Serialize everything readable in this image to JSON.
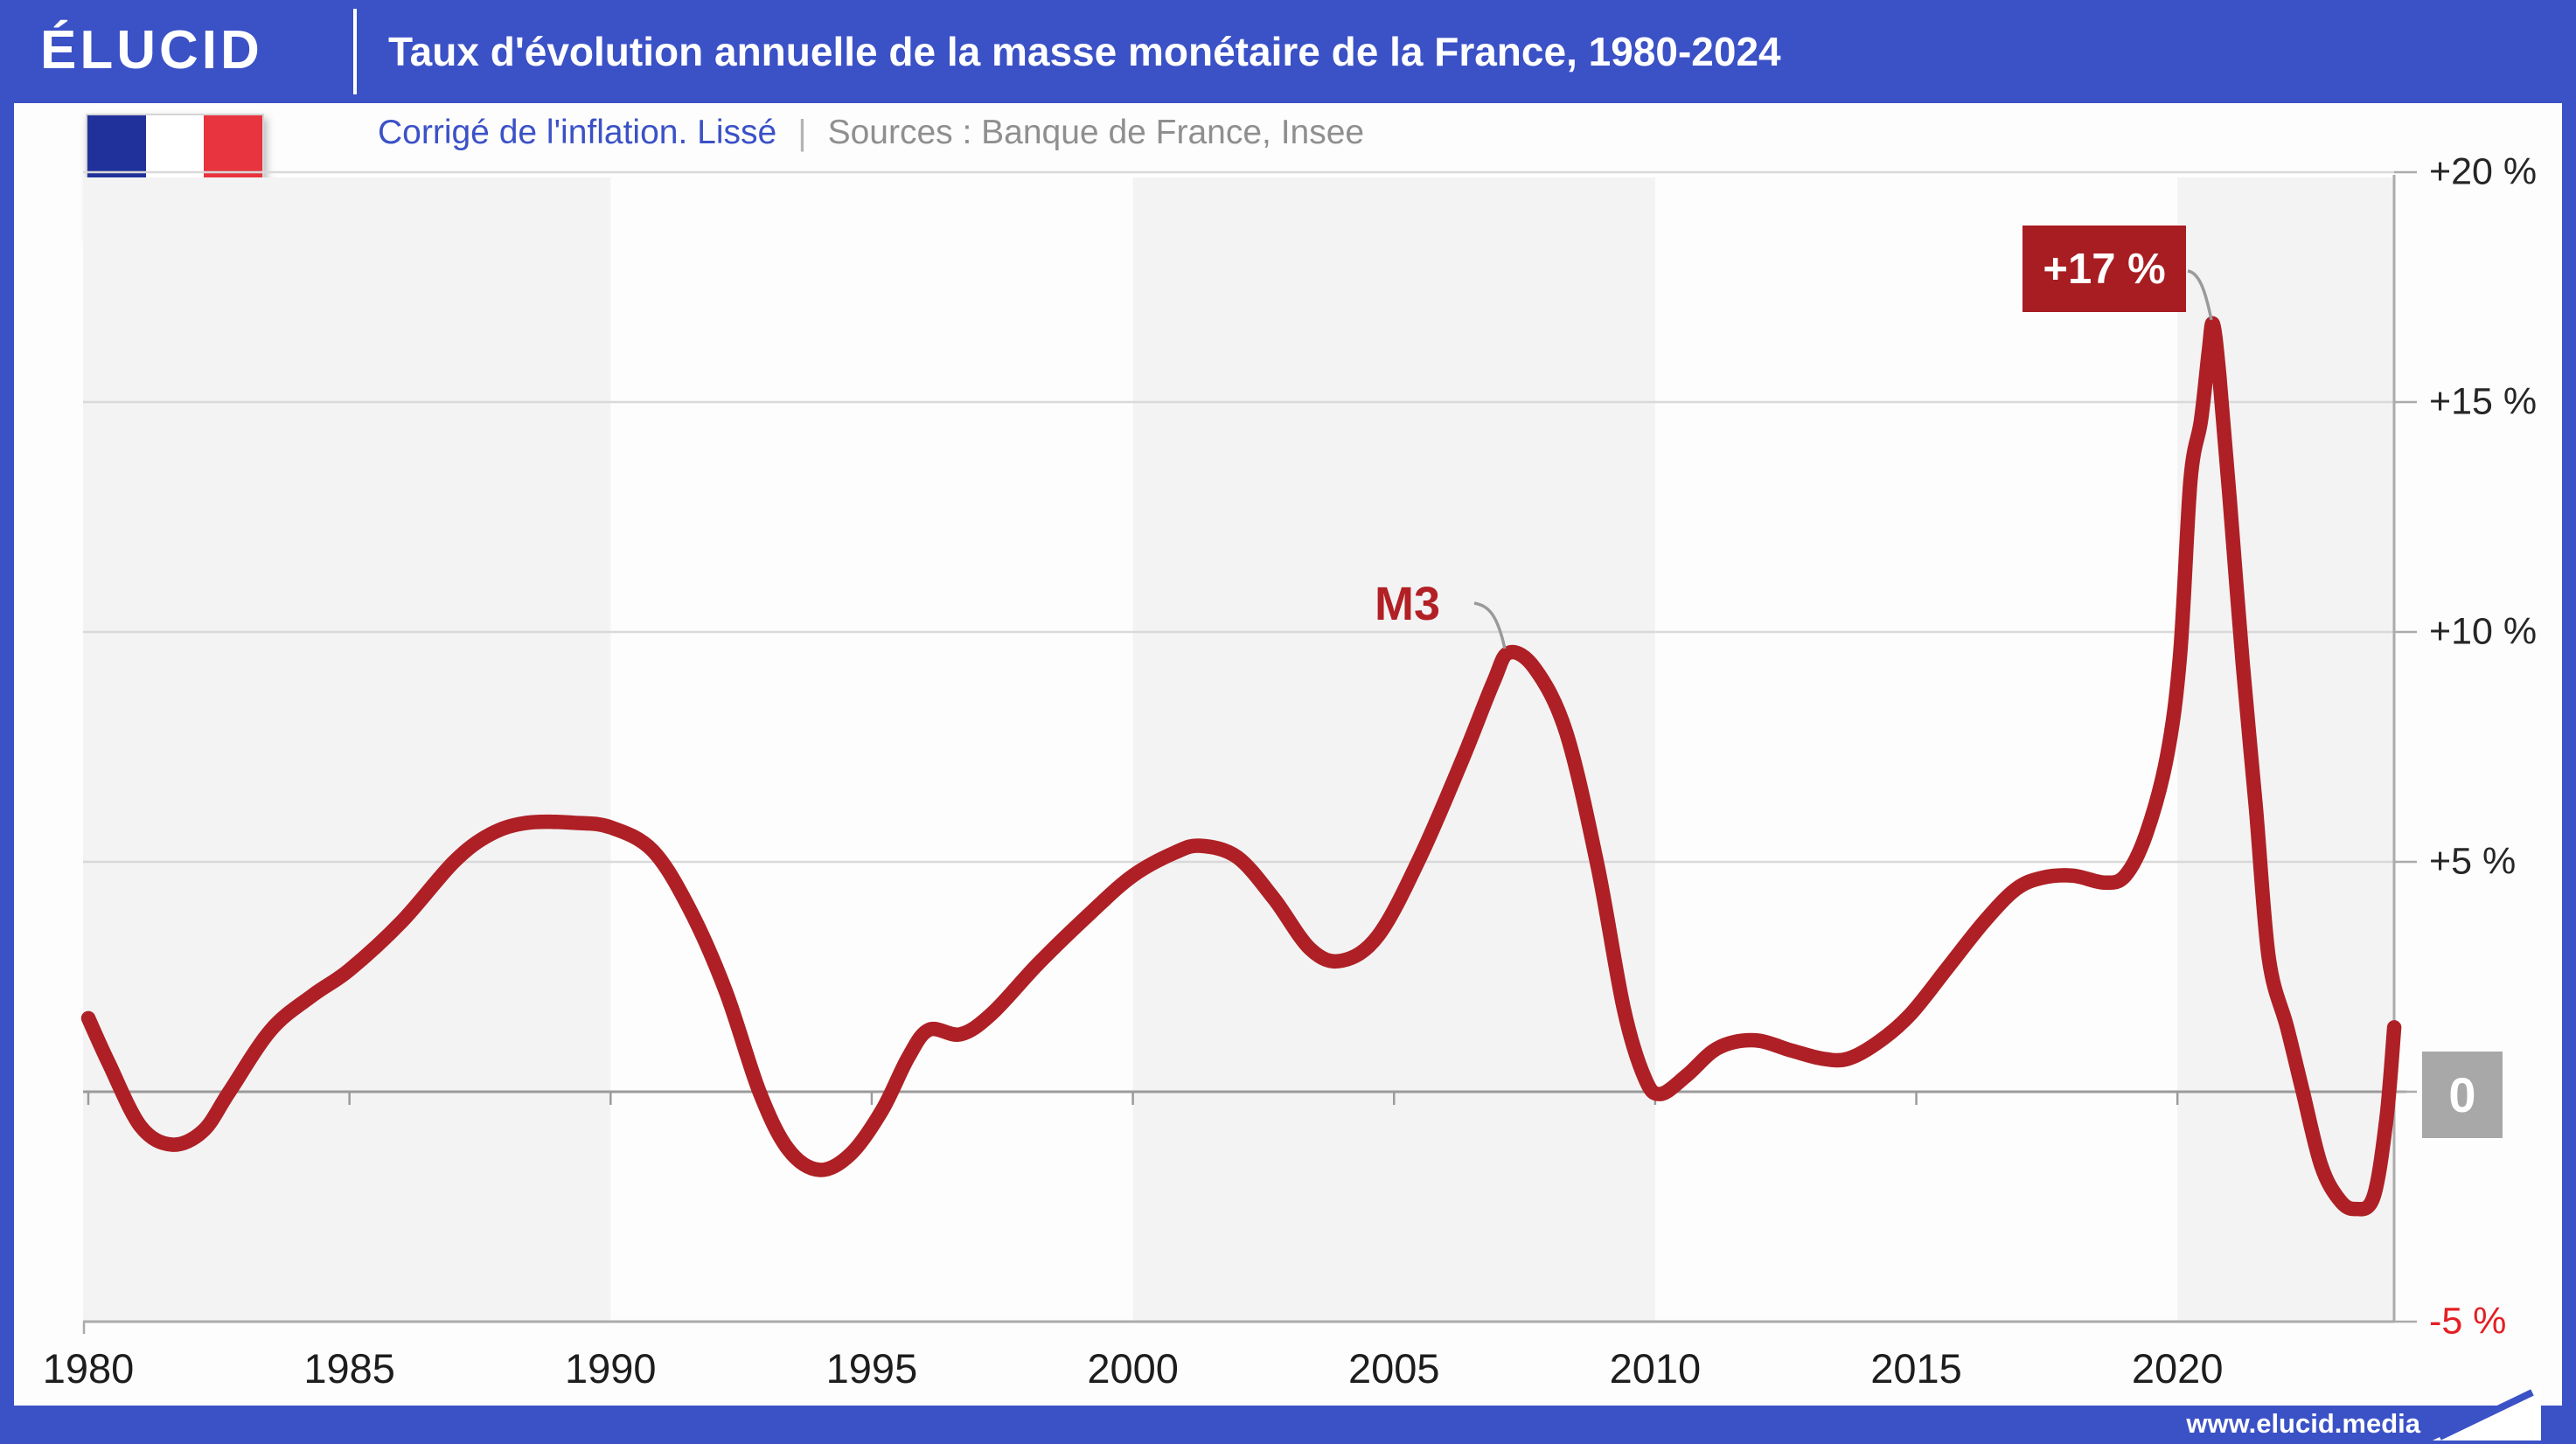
{
  "header": {
    "logo": "ÉLUCID",
    "title": "Taux d'évolution annuelle de la masse monétaire de la France, 1980-2024"
  },
  "subtitle": {
    "note": "Corrigé de l'inflation. Lissé",
    "separator": "|",
    "sources": "Sources : Banque de France, Insee"
  },
  "annotations": {
    "m3_label": "M3",
    "peak_label": "+17 %"
  },
  "axis": {
    "zero_label": "0",
    "neg_label": "-5 %"
  },
  "footer": {
    "url": "www.elucid.media"
  },
  "colors": {
    "accent_blue": "#3b51c6",
    "curve_red": "#ae2025",
    "callout_red": "#a81d22",
    "negative_red": "#e41f24",
    "gridline": "#d9d9d9",
    "zero_line": "#9b9b9b",
    "axis_line": "#ababab",
    "band_gray": "#f3f3f4",
    "zero_box_gray": "#a8a8a8",
    "flag_blue": "#21319b",
    "flag_red": "#e8343f"
  },
  "chart_data": {
    "type": "line",
    "title": "Taux d'évolution annuelle de la masse monétaire de la France, 1980-2024",
    "subtitle": "Corrigé de l'inflation. Lissé",
    "sources": "Banque de France, Insee",
    "unit": "%",
    "xlim": [
      1979.9,
      2024.3
    ],
    "ylim": [
      -5,
      20
    ],
    "grid": true,
    "x_ticks": [
      1980,
      1985,
      1990,
      1995,
      2000,
      2005,
      2010,
      2015,
      2020
    ],
    "y_ticks": [
      {
        "v": 20,
        "label": "+20 %"
      },
      {
        "v": 15,
        "label": "+15 %"
      },
      {
        "v": 10,
        "label": "+10 %"
      },
      {
        "v": 5,
        "label": "+5 %"
      },
      {
        "v": 0,
        "label": "0"
      },
      {
        "v": -5,
        "label": "-5 %"
      }
    ],
    "background_bands": [
      [
        1979.9,
        1990
      ],
      [
        2000,
        2010
      ],
      [
        2020,
        2024.3
      ]
    ],
    "series": [
      {
        "name": "M3",
        "points": [
          [
            1980.0,
            1.6
          ],
          [
            1980.4,
            0.6
          ],
          [
            1981.0,
            -0.75
          ],
          [
            1981.6,
            -1.15
          ],
          [
            1982.2,
            -0.85
          ],
          [
            1982.7,
            0.0
          ],
          [
            1983.5,
            1.35
          ],
          [
            1984.3,
            2.1
          ],
          [
            1985.0,
            2.65
          ],
          [
            1986.0,
            3.7
          ],
          [
            1987.0,
            5.0
          ],
          [
            1987.7,
            5.6
          ],
          [
            1988.4,
            5.85
          ],
          [
            1989.3,
            5.85
          ],
          [
            1990.0,
            5.75
          ],
          [
            1990.8,
            5.25
          ],
          [
            1991.5,
            4.0
          ],
          [
            1992.2,
            2.2
          ],
          [
            1992.85,
            0.0
          ],
          [
            1993.4,
            -1.25
          ],
          [
            1994.0,
            -1.7
          ],
          [
            1994.6,
            -1.35
          ],
          [
            1995.2,
            -0.4
          ],
          [
            1995.7,
            0.75
          ],
          [
            1996.1,
            1.35
          ],
          [
            1996.7,
            1.25
          ],
          [
            1997.3,
            1.7
          ],
          [
            1998.2,
            2.8
          ],
          [
            1999.2,
            3.9
          ],
          [
            2000.0,
            4.7
          ],
          [
            2000.8,
            5.2
          ],
          [
            2001.3,
            5.35
          ],
          [
            2002.0,
            5.1
          ],
          [
            2002.7,
            4.2
          ],
          [
            2003.4,
            3.1
          ],
          [
            2004.0,
            2.85
          ],
          [
            2004.7,
            3.4
          ],
          [
            2005.5,
            5.1
          ],
          [
            2006.3,
            7.2
          ],
          [
            2006.9,
            8.9
          ],
          [
            2007.2,
            9.55
          ],
          [
            2007.7,
            9.2
          ],
          [
            2008.3,
            7.8
          ],
          [
            2008.9,
            4.9
          ],
          [
            2009.4,
            1.8
          ],
          [
            2009.8,
            0.3
          ],
          [
            2010.1,
            -0.05
          ],
          [
            2010.6,
            0.35
          ],
          [
            2011.2,
            0.95
          ],
          [
            2011.9,
            1.12
          ],
          [
            2012.6,
            0.9
          ],
          [
            2013.2,
            0.72
          ],
          [
            2013.7,
            0.72
          ],
          [
            2014.3,
            1.1
          ],
          [
            2014.9,
            1.7
          ],
          [
            2015.6,
            2.7
          ],
          [
            2016.3,
            3.7
          ],
          [
            2016.9,
            4.4
          ],
          [
            2017.4,
            4.65
          ],
          [
            2018.0,
            4.7
          ],
          [
            2018.6,
            4.55
          ],
          [
            2019.0,
            4.7
          ],
          [
            2019.4,
            5.6
          ],
          [
            2019.8,
            7.3
          ],
          [
            2020.05,
            9.5
          ],
          [
            2020.25,
            13.3
          ],
          [
            2020.45,
            14.6
          ],
          [
            2020.6,
            16.1
          ],
          [
            2020.68,
            16.7
          ],
          [
            2020.8,
            15.6
          ],
          [
            2021.0,
            12.9
          ],
          [
            2021.25,
            9.3
          ],
          [
            2021.5,
            6.2
          ],
          [
            2021.75,
            2.9
          ],
          [
            2022.1,
            1.4
          ],
          [
            2022.4,
            0.0
          ],
          [
            2022.75,
            -1.6
          ],
          [
            2023.1,
            -2.35
          ],
          [
            2023.4,
            -2.55
          ],
          [
            2023.75,
            -2.3
          ],
          [
            2024.0,
            -0.6
          ],
          [
            2024.15,
            1.4
          ]
        ]
      }
    ],
    "point_annotations": [
      {
        "label": "M3",
        "x": 2007.15,
        "y": 9.55
      },
      {
        "label": "+17 %",
        "x": 2020.68,
        "y": 16.7
      }
    ]
  }
}
